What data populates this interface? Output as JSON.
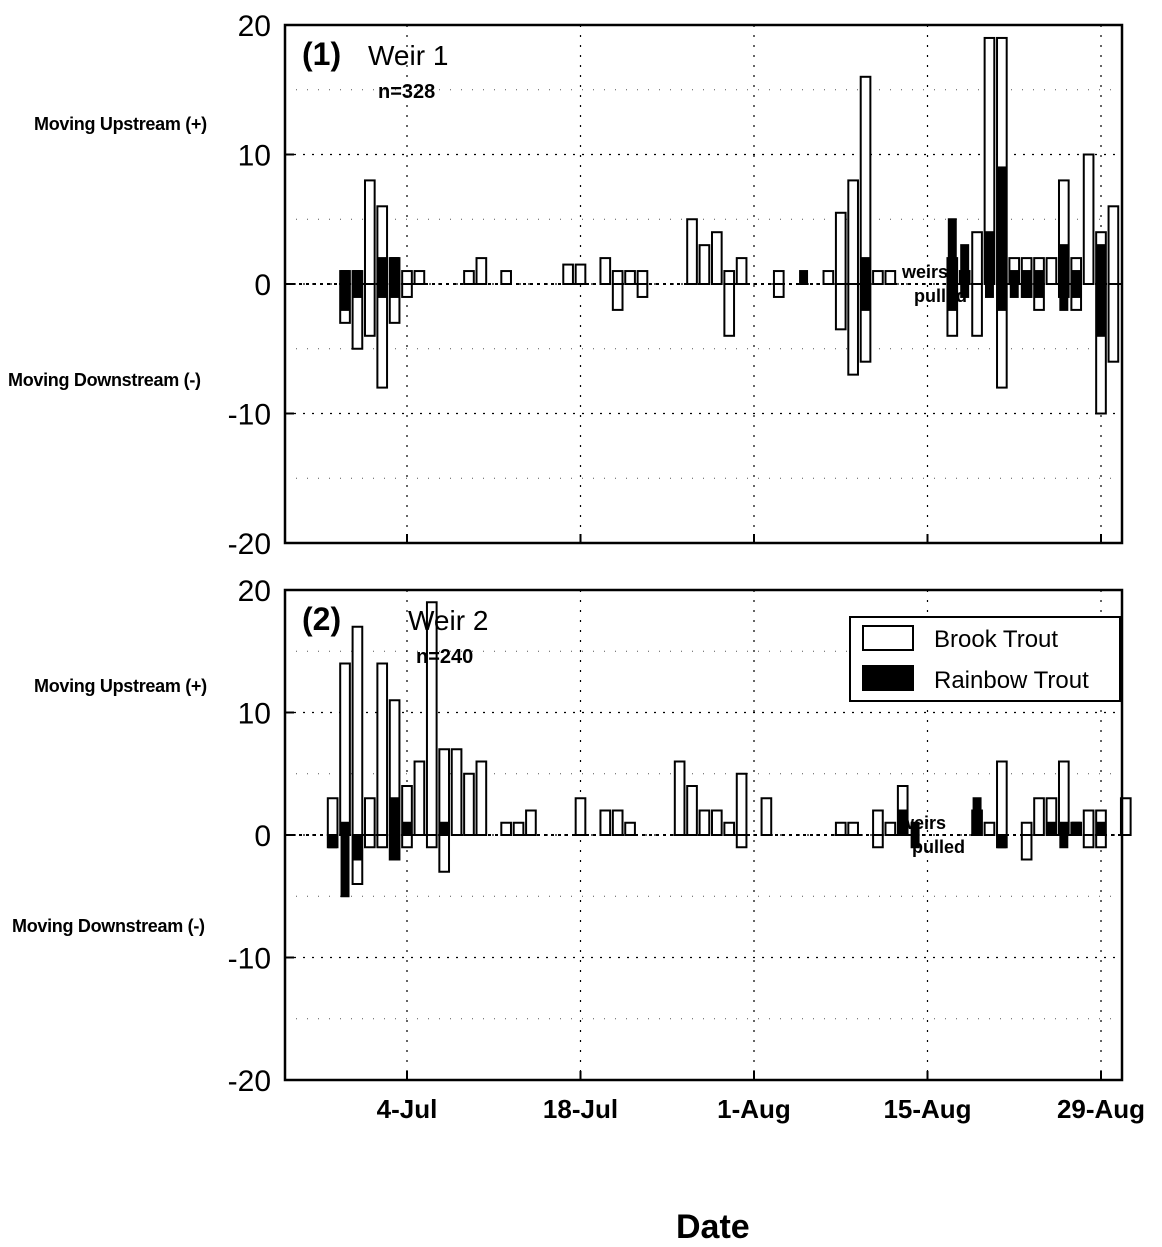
{
  "x_axis_title": "Date",
  "side_labels": {
    "upstream": "Moving Upstream (+)",
    "downstream": "Moving Downstream (-)"
  },
  "legend": {
    "brook": "Brook Trout",
    "rainbow": "Rainbow Trout"
  },
  "colors": {
    "brook_fill": "#ffffff",
    "rainbow_fill": "#000000",
    "outline": "#000000"
  },
  "chart_data": [
    {
      "type": "bar",
      "panel_label": "(1)",
      "title": "Weir 1",
      "n_label": "n=328",
      "annotation": [
        "weirs",
        "pulled"
      ],
      "ylim": [
        -20,
        20
      ],
      "y_ticks": [
        20,
        10,
        0,
        -10,
        -20
      ],
      "x_ticks": [
        "4-Jul",
        "18-Jul",
        "1-Aug",
        "15-Aug",
        "29-Aug"
      ],
      "xlabel": "Date",
      "series": [
        {
          "name": "Brook Trout",
          "x": [
            "29-Jun",
            "30-Jun",
            "1-Jul",
            "2-Jul",
            "3-Jul",
            "4-Jul",
            "5-Jul",
            "9-Jul",
            "10-Jul",
            "12-Jul",
            "17-Jul",
            "18-Jul",
            "20-Jul",
            "21-Jul",
            "22-Jul",
            "23-Jul",
            "27-Jul",
            "28-Jul",
            "29-Jul",
            "30-Jul",
            "31-Jul",
            "3-Aug",
            "7-Aug",
            "8-Aug",
            "9-Aug",
            "10-Aug",
            "11-Aug",
            "12-Aug",
            "17-Aug",
            "18-Aug",
            "19-Aug",
            "20-Aug",
            "21-Aug",
            "22-Aug",
            "23-Aug",
            "24-Aug",
            "25-Aug",
            "26-Aug",
            "27-Aug",
            "28-Aug",
            "29-Aug",
            "30-Aug"
          ],
          "upstream": [
            1,
            1,
            8,
            6,
            2,
            1,
            1,
            1,
            2,
            1,
            1.5,
            1.5,
            2,
            1,
            1,
            1,
            5,
            3,
            4,
            1,
            2,
            1,
            1,
            5.5,
            8,
            16,
            1,
            1,
            2,
            1,
            4,
            19,
            19,
            2,
            2,
            2,
            2,
            8,
            2,
            10,
            4,
            6
          ],
          "downstream": [
            -3,
            -5,
            -4,
            -8,
            -3,
            -1,
            0,
            0,
            0,
            0,
            0,
            0,
            0,
            -2,
            0,
            -1,
            0,
            0,
            0,
            -4,
            0,
            -1,
            0,
            -3.5,
            -7,
            -6,
            0,
            0,
            -4,
            0,
            -4,
            0,
            -8,
            0,
            -1,
            -2,
            0,
            -1,
            -2,
            0,
            -10,
            -6
          ]
        },
        {
          "name": "Rainbow Trout",
          "x": [
            "29-Jun",
            "30-Jun",
            "2-Jul",
            "3-Jul",
            "5-Aug",
            "10-Aug",
            "17-Aug",
            "18-Aug",
            "20-Aug",
            "21-Aug",
            "22-Aug",
            "23-Aug",
            "24-Aug",
            "26-Aug",
            "27-Aug",
            "29-Aug"
          ],
          "upstream": [
            1,
            1,
            2,
            2,
            1,
            2,
            5,
            3,
            4,
            9,
            1,
            1,
            1,
            3,
            1,
            3
          ],
          "downstream": [
            -2,
            -1,
            -1,
            -1,
            0,
            -2,
            -2,
            -1,
            -1,
            -2,
            -1,
            -1,
            -1,
            -2,
            -1,
            -4
          ]
        }
      ]
    },
    {
      "type": "bar",
      "panel_label": "(2)",
      "title": "Weir 2",
      "n_label": "n=240",
      "annotation": [
        "weirs",
        "pulled"
      ],
      "ylim": [
        -20,
        20
      ],
      "y_ticks": [
        20,
        10,
        0,
        -10,
        -20
      ],
      "x_ticks": [
        "4-Jul",
        "18-Jul",
        "1-Aug",
        "15-Aug",
        "29-Aug"
      ],
      "xlabel": "Date",
      "series": [
        {
          "name": "Brook Trout",
          "x": [
            "28-Jun",
            "29-Jun",
            "30-Jun",
            "1-Jul",
            "2-Jul",
            "3-Jul",
            "4-Jul",
            "5-Jul",
            "6-Jul",
            "7-Jul",
            "8-Jul",
            "9-Jul",
            "10-Jul",
            "12-Jul",
            "13-Jul",
            "14-Jul",
            "18-Jul",
            "20-Jul",
            "21-Jul",
            "22-Jul",
            "26-Jul",
            "27-Jul",
            "28-Jul",
            "29-Jul",
            "30-Jul",
            "31-Jul",
            "2-Aug",
            "8-Aug",
            "9-Aug",
            "11-Aug",
            "12-Aug",
            "13-Aug",
            "19-Aug",
            "20-Aug",
            "21-Aug",
            "23-Aug",
            "24-Aug",
            "25-Aug",
            "26-Aug",
            "27-Aug",
            "28-Aug",
            "29-Aug",
            "31-Aug"
          ],
          "upstream": [
            3,
            14,
            17,
            3,
            14,
            11,
            4,
            6,
            19,
            7,
            7,
            5,
            6,
            1,
            1,
            2,
            3,
            2,
            2,
            1,
            6,
            4,
            2,
            2,
            1,
            5,
            3,
            1,
            1,
            2,
            1,
            4,
            2,
            1,
            6,
            1,
            3,
            3,
            6,
            1,
            2,
            2,
            3
          ],
          "downstream": [
            -1,
            0,
            -4,
            -1,
            -1,
            -2,
            -1,
            0,
            -1,
            -3,
            0,
            0,
            0,
            0,
            0,
            0,
            0,
            0,
            0,
            0,
            0,
            0,
            0,
            0,
            0,
            -1,
            0,
            0,
            0,
            -1,
            0,
            0,
            0,
            0,
            -1,
            -2,
            0,
            0,
            0,
            0,
            -1,
            -1,
            0
          ]
        },
        {
          "name": "Rainbow Trout",
          "x": [
            "28-Jun",
            "29-Jun",
            "30-Jun",
            "3-Jul",
            "4-Jul",
            "7-Jul",
            "13-Aug",
            "14-Aug",
            "19-Aug",
            "21-Aug",
            "25-Aug",
            "26-Aug",
            "27-Aug",
            "29-Aug"
          ],
          "upstream": [
            0,
            1,
            0,
            3,
            1,
            1,
            2,
            1,
            3,
            0,
            1,
            1,
            1,
            1
          ],
          "downstream": [
            -1,
            -5,
            -2,
            -2,
            0,
            0,
            0,
            -1,
            0,
            -1,
            0,
            -1,
            0,
            0
          ]
        }
      ]
    }
  ]
}
